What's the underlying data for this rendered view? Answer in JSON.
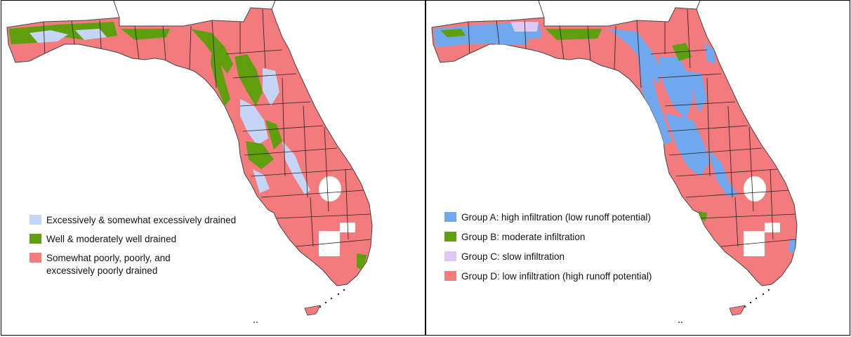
{
  "colors": {
    "excessively_drained": "#c5d5f5",
    "well_drained": "#5f9e0d",
    "poorly_drained": "#f47b7d",
    "group_a": "#6fa8ef",
    "group_b": "#5f9e0d",
    "group_c": "#e0c8f4",
    "group_d": "#f47b7d",
    "county_border": "#222222",
    "outline": "#444444"
  },
  "left_panel": {
    "legend": [
      {
        "label": "Excessively & somewhat excessively drained",
        "color": "#c5d5f5"
      },
      {
        "label": "Well & moderately well drained",
        "color": "#5f9e0d"
      },
      {
        "label": "Somewhat poorly, poorly, and\nexcessively poorly drained",
        "color": "#f47b7d"
      }
    ]
  },
  "right_panel": {
    "legend": [
      {
        "label": "Group A: high infiltration  (low runoff potential)",
        "color": "#6fa8ef"
      },
      {
        "label": "Group B: moderate infiltration",
        "color": "#5f9e0d"
      },
      {
        "label": "Group C: slow infiltration",
        "color": "#e0c8f4"
      },
      {
        "label": "Group D: low infiltration (high runoff potential)",
        "color": "#f47b7d"
      }
    ]
  }
}
